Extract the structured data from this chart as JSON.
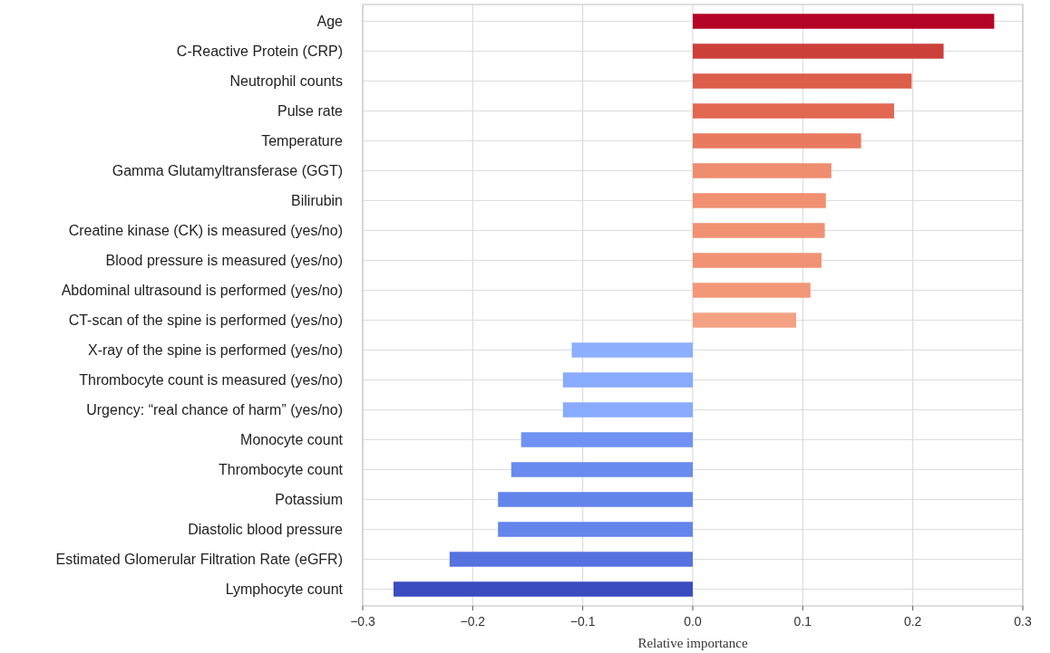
{
  "chart_data": {
    "type": "bar",
    "orientation": "horizontal",
    "xlabel": "Relative importance",
    "categories": [
      "Age",
      "C-Reactive Protein (CRP)",
      "Neutrophil counts",
      "Pulse rate",
      "Temperature",
      "Gamma Glutamyltransferase (GGT)",
      "Bilirubin",
      "Creatine kinase (CK) is measured (yes/no)",
      "Blood pressure is measured (yes/no)",
      "Abdominal ultrasound is performed (yes/no)",
      "CT-scan of the spine is performed (yes/no)",
      "X-ray of the spine is performed (yes/no)",
      "Thrombocyte count is measured (yes/no)",
      "Urgency: “real chance of harm” (yes/no)",
      "Monocyte count",
      "Thrombocyte count",
      "Potassium",
      "Diastolic blood pressure",
      "Estimated Glomerular Filtration Rate (eGFR)",
      "Lymphocyte count"
    ],
    "values": [
      0.274,
      0.228,
      0.199,
      0.183,
      0.153,
      0.126,
      0.121,
      0.12,
      0.117,
      0.107,
      0.094,
      -0.11,
      -0.118,
      -0.118,
      -0.156,
      -0.165,
      -0.177,
      -0.177,
      -0.221,
      -0.272
    ],
    "colors": [
      "#b40426",
      "#cc403a",
      "#dc5d4a",
      "#e16751",
      "#e97a5f",
      "#ee8d6f",
      "#ef9071",
      "#f09173",
      "#f09374",
      "#f29878",
      "#f4a283",
      "#8caffe",
      "#88abfd",
      "#88abfd",
      "#6f92f3",
      "#6a8bef",
      "#6384eb",
      "#6384eb",
      "#5572df",
      "#3b4cc0"
    ],
    "xlim": [
      -0.3,
      0.3
    ],
    "xticks": [
      {
        "value": -0.3,
        "label": "−0.3"
      },
      {
        "value": -0.2,
        "label": "−0.2"
      },
      {
        "value": -0.1,
        "label": "−0.1"
      },
      {
        "value": 0,
        "label": "0.0"
      },
      0.1,
      0.2,
      0.3
    ],
    "grid": true
  }
}
